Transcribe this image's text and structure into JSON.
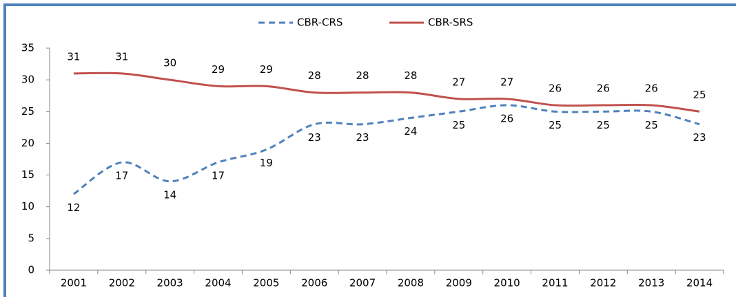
{
  "chart_data": {
    "type": "line",
    "categories": [
      "2001",
      "2002",
      "2003",
      "2004",
      "2005",
      "2006",
      "2007",
      "2008",
      "2009",
      "2010",
      "2011",
      "2012",
      "2013",
      "2014"
    ],
    "series": [
      {
        "name": "CBR-CRS",
        "color": "#4f81bd",
        "dashed": true,
        "label_position": "below",
        "values": [
          12,
          17,
          14,
          17,
          19,
          23,
          23,
          24,
          25,
          26,
          25,
          25,
          25,
          23
        ]
      },
      {
        "name": "CBR-SRS",
        "color": "#c0504d",
        "dashed": false,
        "label_position": "above",
        "values": [
          31,
          31,
          30,
          29,
          29,
          28,
          28,
          28,
          27,
          27,
          26,
          26,
          26,
          25
        ]
      }
    ],
    "ylim": [
      0,
      35
    ],
    "yticks": [
      0,
      5,
      10,
      15,
      20,
      25,
      30,
      35
    ],
    "grid": false,
    "legend": "top"
  }
}
